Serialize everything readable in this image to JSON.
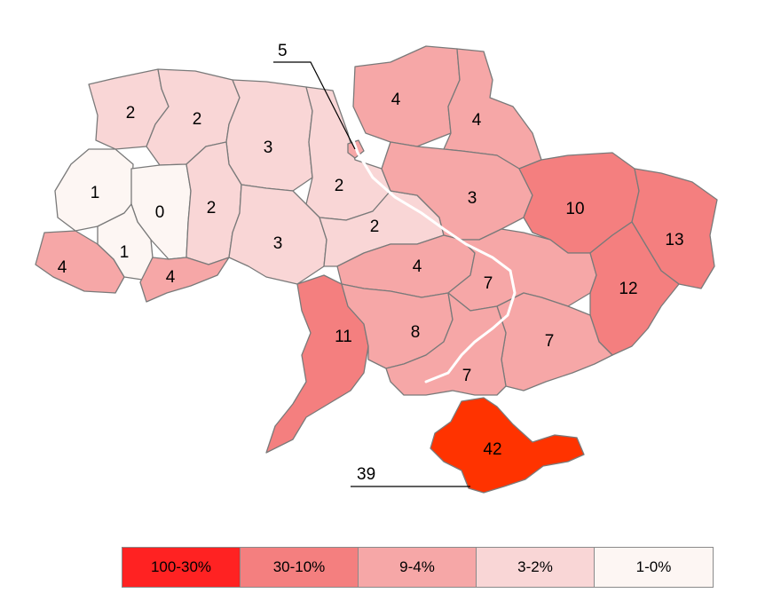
{
  "legend": {
    "items": [
      {
        "label": "100-30%",
        "color": "#ff2222"
      },
      {
        "label": "30-10%",
        "color": "#f47f7f"
      },
      {
        "label": "9-4%",
        "color": "#f6a7a7"
      },
      {
        "label": "3-2%",
        "color": "#f9d6d6"
      },
      {
        "label": "1-0%",
        "color": "#fdf6f3"
      }
    ]
  },
  "regions": [
    {
      "name": "volyn",
      "value": "2"
    },
    {
      "name": "rivne",
      "value": "2"
    },
    {
      "name": "zhytomyr",
      "value": "3"
    },
    {
      "name": "kyiv-oblast",
      "value": "2"
    },
    {
      "name": "chernihiv",
      "value": "4"
    },
    {
      "name": "sumy",
      "value": "4"
    },
    {
      "name": "lviv",
      "value": "1"
    },
    {
      "name": "ternopil",
      "value": "0"
    },
    {
      "name": "khmelnytskyi",
      "value": "2"
    },
    {
      "name": "vinnytsia",
      "value": "3"
    },
    {
      "name": "cherkasy",
      "value": "2"
    },
    {
      "name": "poltava",
      "value": "3"
    },
    {
      "name": "kharkiv",
      "value": "10"
    },
    {
      "name": "luhansk",
      "value": "13"
    },
    {
      "name": "zakarpattia",
      "value": "4"
    },
    {
      "name": "ivano-frankivsk",
      "value": "1"
    },
    {
      "name": "chernivtsi",
      "value": "4"
    },
    {
      "name": "kirovohrad",
      "value": "4"
    },
    {
      "name": "dnipropetrovsk",
      "value": "7"
    },
    {
      "name": "donetsk",
      "value": "12"
    },
    {
      "name": "odesa",
      "value": "11"
    },
    {
      "name": "mykolaiv",
      "value": "8"
    },
    {
      "name": "zaporizhzhia",
      "value": "7"
    },
    {
      "name": "kherson",
      "value": "7"
    },
    {
      "name": "crimea",
      "value": "42"
    }
  ],
  "callouts": {
    "kyiv_city": "5",
    "sevastopol": "39"
  }
}
